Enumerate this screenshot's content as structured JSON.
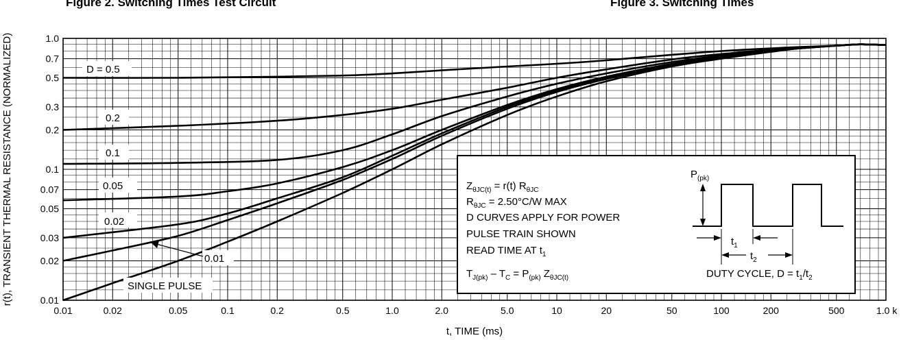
{
  "headers": {
    "left": "Figure 2. Switching Times Test Circuit",
    "right": "Figure 3. Switching Times"
  },
  "chart_data": {
    "type": "line",
    "xlabel": "t, TIME (ms)",
    "ylabel": "r(t), TRANSIENT THERMAL RESISTANCE (NORMALIZED)",
    "xscale": "log",
    "yscale": "log",
    "xlim": [
      0.01,
      1000
    ],
    "ylim": [
      0.01,
      1.0
    ],
    "grid": true,
    "x_ticks": [
      {
        "v": 0.01,
        "label": "0.01"
      },
      {
        "v": 0.02,
        "label": "0.02"
      },
      {
        "v": 0.05,
        "label": "0.05"
      },
      {
        "v": 0.1,
        "label": "0.1"
      },
      {
        "v": 0.2,
        "label": "0.2"
      },
      {
        "v": 0.5,
        "label": "0.5"
      },
      {
        "v": 1,
        "label": "1.0"
      },
      {
        "v": 2,
        "label": "2.0"
      },
      {
        "v": 5,
        "label": "5.0"
      },
      {
        "v": 10,
        "label": "10"
      },
      {
        "v": 20,
        "label": "20"
      },
      {
        "v": 50,
        "label": "50"
      },
      {
        "v": 100,
        "label": "100"
      },
      {
        "v": 200,
        "label": "200"
      },
      {
        "v": 500,
        "label": "500"
      },
      {
        "v": 1000,
        "label": "1.0 k"
      }
    ],
    "y_ticks": [
      {
        "v": 0.01,
        "label": "0.01"
      },
      {
        "v": 0.02,
        "label": "0.02"
      },
      {
        "v": 0.03,
        "label": "0.03"
      },
      {
        "v": 0.05,
        "label": "0.05"
      },
      {
        "v": 0.07,
        "label": "0.07"
      },
      {
        "v": 0.1,
        "label": "0.1"
      },
      {
        "v": 0.2,
        "label": "0.2"
      },
      {
        "v": 0.3,
        "label": "0.3"
      },
      {
        "v": 0.5,
        "label": "0.5"
      },
      {
        "v": 0.7,
        "label": "0.7"
      },
      {
        "v": 1.0,
        "label": "1.0"
      }
    ],
    "series": [
      {
        "name": "D = 0.5",
        "x": [
          0.01,
          0.05,
          0.2,
          0.5,
          1,
          2,
          5,
          10,
          20,
          50,
          100,
          200,
          300,
          500,
          700,
          1000
        ],
        "y": [
          0.5,
          0.5,
          0.51,
          0.52,
          0.54,
          0.57,
          0.61,
          0.64,
          0.68,
          0.75,
          0.8,
          0.84,
          0.86,
          0.88,
          0.9,
          0.89
        ]
      },
      {
        "name": "0.2",
        "x": [
          0.01,
          0.05,
          0.2,
          0.5,
          1,
          2,
          5,
          10,
          20,
          50,
          100,
          200,
          300,
          500,
          700,
          1000
        ],
        "y": [
          0.2,
          0.215,
          0.235,
          0.26,
          0.29,
          0.34,
          0.42,
          0.5,
          0.58,
          0.69,
          0.76,
          0.82,
          0.85,
          0.88,
          0.9,
          0.89
        ]
      },
      {
        "name": "0.1",
        "x": [
          0.01,
          0.05,
          0.2,
          0.5,
          1,
          2,
          5,
          10,
          20,
          50,
          100,
          200,
          300,
          500,
          700,
          1000
        ],
        "y": [
          0.11,
          0.112,
          0.118,
          0.14,
          0.185,
          0.255,
          0.36,
          0.45,
          0.54,
          0.66,
          0.74,
          0.81,
          0.84,
          0.88,
          0.9,
          0.89
        ]
      },
      {
        "name": "0.05",
        "x": [
          0.01,
          0.05,
          0.1,
          0.2,
          0.5,
          1,
          2,
          5,
          10,
          20,
          50,
          100,
          200,
          300,
          500,
          700,
          1000
        ],
        "y": [
          0.058,
          0.062,
          0.068,
          0.078,
          0.104,
          0.14,
          0.2,
          0.31,
          0.41,
          0.51,
          0.64,
          0.73,
          0.8,
          0.84,
          0.88,
          0.9,
          0.89
        ]
      },
      {
        "name": "0.02",
        "x": [
          0.01,
          0.05,
          0.1,
          0.2,
          0.5,
          1,
          2,
          5,
          10,
          20,
          50,
          100,
          200,
          300,
          500,
          700,
          1000
        ],
        "y": [
          0.03,
          0.038,
          0.046,
          0.06,
          0.087,
          0.127,
          0.188,
          0.3,
          0.4,
          0.5,
          0.63,
          0.72,
          0.8,
          0.84,
          0.88,
          0.9,
          0.89
        ]
      },
      {
        "name": "0.01",
        "x": [
          0.01,
          0.02,
          0.05,
          0.1,
          0.2,
          0.5,
          1,
          2,
          5,
          10,
          20,
          50,
          100,
          200,
          300,
          500,
          700,
          1000
        ],
        "y": [
          0.02,
          0.024,
          0.031,
          0.041,
          0.055,
          0.083,
          0.12,
          0.18,
          0.29,
          0.39,
          0.49,
          0.62,
          0.71,
          0.8,
          0.84,
          0.88,
          0.9,
          0.89
        ]
      },
      {
        "name": "SINGLE PULSE",
        "x": [
          0.01,
          0.02,
          0.05,
          0.1,
          0.2,
          0.5,
          1,
          2,
          5,
          10,
          20,
          50,
          100,
          200,
          300,
          500,
          700,
          1000
        ],
        "y": [
          0.01,
          0.0135,
          0.02,
          0.028,
          0.04,
          0.066,
          0.1,
          0.155,
          0.26,
          0.36,
          0.47,
          0.61,
          0.7,
          0.79,
          0.84,
          0.88,
          0.9,
          0.89
        ]
      }
    ],
    "annotations": {
      "formula": {
        "l1": {
          "a": "Z",
          "b": "θJC(t)",
          "c": " = r(t) R",
          "d": "θJC"
        },
        "l2": {
          "a": "R",
          "b": "θJC",
          "c": " = 2.50°C/W MAX"
        },
        "l3": "D CURVES APPLY FOR POWER",
        "l4": "PULSE TRAIN SHOWN",
        "l5": {
          "a": "READ TIME AT t",
          "b": "1"
        },
        "l6": {
          "a": "T",
          "b": "J(pk)",
          "c": " – T",
          "d": "C",
          "e": " = P",
          "f": "(pk)",
          "g": " Z",
          "h": "θJC(t)"
        }
      },
      "pulse": {
        "ppk": {
          "a": "P",
          "b": "(pk)"
        },
        "t1": {
          "a": "t",
          "b": "1"
        },
        "t2": {
          "a": "t",
          "b": "2"
        },
        "duty": {
          "a": "DUTY CYCLE, D = t",
          "b": "1",
          "c": "/t",
          "d": "2"
        }
      }
    }
  }
}
